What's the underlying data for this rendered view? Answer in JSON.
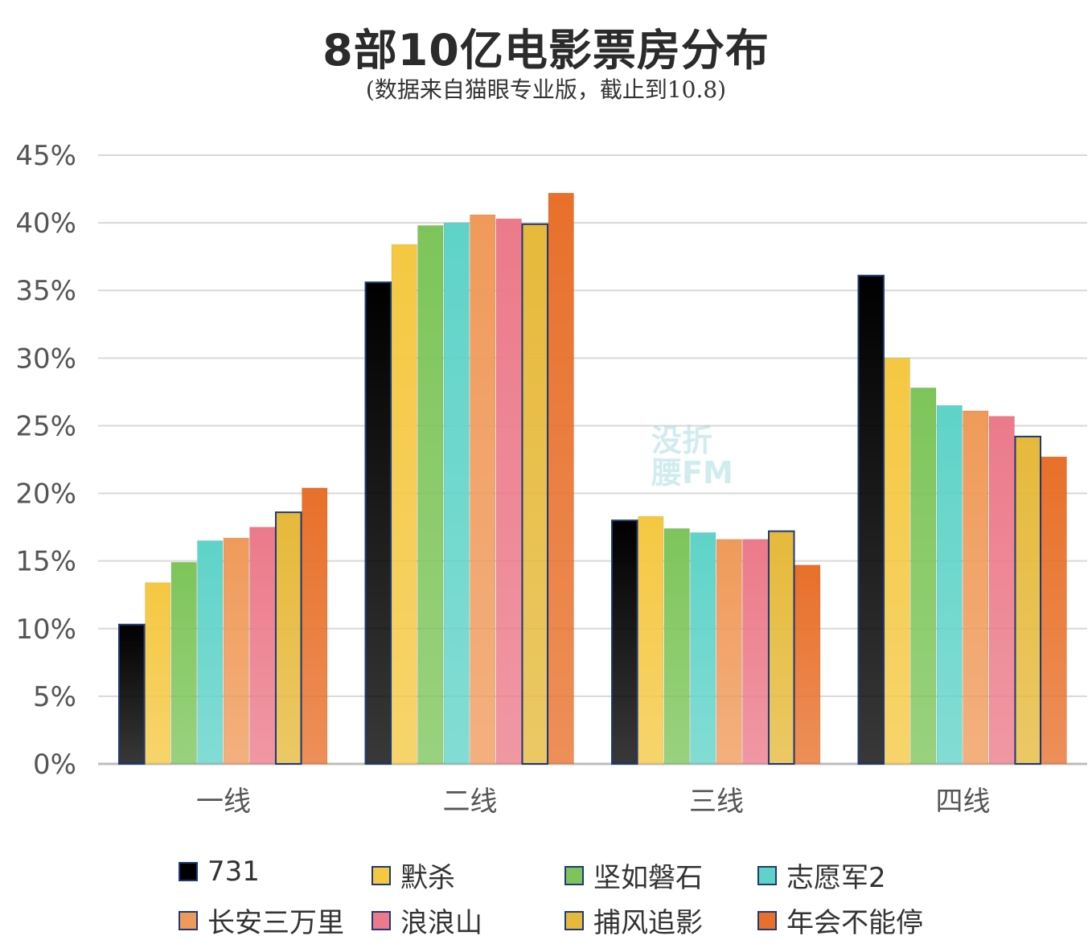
{
  "title": "8部10亿电影票房分布",
  "subtitle": "(数据来自猫眼专业版，截止到10.8)",
  "watermark": "没折腰FM",
  "chart_data": {
    "type": "bar",
    "title": "8部10亿电影票房分布",
    "subtitle": "(数据来自猫眼专业版，截止到10.8)",
    "categories": [
      "一线",
      "二线",
      "三线",
      "四线"
    ],
    "ylim": [
      0,
      45
    ],
    "yticks": [
      "0%",
      "5%",
      "10%",
      "15%",
      "20%",
      "25%",
      "30%",
      "35%",
      "40%",
      "45%"
    ],
    "ylabel": "",
    "xlabel": "",
    "grid": true,
    "legend_position": "bottom",
    "series": [
      {
        "name": "731",
        "color": "#000000",
        "values": [
          10.3,
          35.6,
          18.0,
          36.1
        ]
      },
      {
        "name": "默杀",
        "color": "#f5c842",
        "values": [
          13.4,
          38.4,
          18.3,
          30.0
        ]
      },
      {
        "name": "坚如磐石",
        "color": "#7dc55a",
        "values": [
          14.9,
          39.8,
          17.4,
          27.8
        ]
      },
      {
        "name": "志愿军2",
        "color": "#5fd3c8",
        "values": [
          16.5,
          40.0,
          17.1,
          26.5
        ]
      },
      {
        "name": "长安三万里",
        "color": "#f09a5a",
        "values": [
          16.7,
          40.6,
          16.6,
          26.1
        ]
      },
      {
        "name": "浪浪山",
        "color": "#ec7a8a",
        "values": [
          17.5,
          40.3,
          16.6,
          25.7
        ]
      },
      {
        "name": "捕风追影",
        "color": "#e6b93a",
        "values": [
          18.6,
          39.9,
          17.2,
          24.2
        ]
      },
      {
        "name": "年会不能停",
        "color": "#e8702a",
        "values": [
          20.4,
          42.2,
          14.7,
          22.7
        ]
      }
    ]
  }
}
